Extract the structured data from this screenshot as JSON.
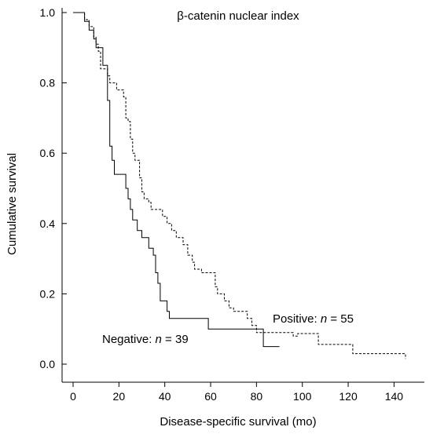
{
  "chart_data": {
    "type": "line",
    "title": "β-catenin nuclear index",
    "xlabel": "Disease-specific survival (mo)",
    "ylabel": "Cumulative survival",
    "xlim": [
      0,
      145
    ],
    "ylim": [
      0,
      1
    ],
    "xticks": [
      "0",
      "20",
      "40",
      "60",
      "80",
      "100",
      "120",
      "140"
    ],
    "yticks": [
      "0.0",
      "0.2",
      "0.4",
      "0.6",
      "0.8",
      "1.0"
    ],
    "grid": false,
    "series": [
      {
        "name": "Negative",
        "style": "solid",
        "points": [
          [
            0,
            1.0
          ],
          [
            4,
            1.0
          ],
          [
            5,
            0.975
          ],
          [
            7,
            0.95
          ],
          [
            9,
            0.925
          ],
          [
            10,
            0.9
          ],
          [
            12,
            0.9
          ],
          [
            13,
            0.85
          ],
          [
            15,
            0.85
          ],
          [
            15,
            0.75
          ],
          [
            16,
            0.62
          ],
          [
            17,
            0.58
          ],
          [
            18,
            0.54
          ],
          [
            23,
            0.54
          ],
          [
            23,
            0.5
          ],
          [
            24,
            0.47
          ],
          [
            25,
            0.44
          ],
          [
            26,
            0.41
          ],
          [
            28,
            0.38
          ],
          [
            30,
            0.36
          ],
          [
            33,
            0.36
          ],
          [
            33,
            0.33
          ],
          [
            35,
            0.31
          ],
          [
            36,
            0.28
          ],
          [
            36,
            0.26
          ],
          [
            37,
            0.23
          ],
          [
            38,
            0.21
          ],
          [
            38,
            0.18
          ],
          [
            40,
            0.18
          ],
          [
            41,
            0.15
          ],
          [
            42,
            0.13
          ],
          [
            59,
            0.13
          ],
          [
            59,
            0.1
          ],
          [
            83,
            0.1
          ],
          [
            83,
            0.05
          ],
          [
            90,
            0.05
          ]
        ]
      },
      {
        "name": "Positive",
        "style": "dashed",
        "points": [
          [
            0,
            1.0
          ],
          [
            4,
            1.0
          ],
          [
            5,
            0.98
          ],
          [
            7,
            0.96
          ],
          [
            9,
            0.93
          ],
          [
            10,
            0.91
          ],
          [
            11,
            0.89
          ],
          [
            12,
            0.84
          ],
          [
            14,
            0.84
          ],
          [
            15,
            0.82
          ],
          [
            16,
            0.8
          ],
          [
            19,
            0.78
          ],
          [
            22,
            0.76
          ],
          [
            23,
            0.7
          ],
          [
            24,
            0.69
          ],
          [
            25,
            0.64
          ],
          [
            26,
            0.6
          ],
          [
            27,
            0.58
          ],
          [
            29,
            0.53
          ],
          [
            30,
            0.49
          ],
          [
            31,
            0.47
          ],
          [
            33,
            0.46
          ],
          [
            34,
            0.44
          ],
          [
            38,
            0.44
          ],
          [
            39,
            0.42
          ],
          [
            41,
            0.4
          ],
          [
            43,
            0.38
          ],
          [
            45,
            0.36
          ],
          [
            48,
            0.34
          ],
          [
            50,
            0.31
          ],
          [
            52,
            0.29
          ],
          [
            53,
            0.27
          ],
          [
            56,
            0.26
          ],
          [
            61,
            0.26
          ],
          [
            62,
            0.22
          ],
          [
            63,
            0.2
          ],
          [
            66,
            0.18
          ],
          [
            68,
            0.16
          ],
          [
            70,
            0.15
          ],
          [
            75,
            0.15
          ],
          [
            76,
            0.13
          ],
          [
            78,
            0.11
          ],
          [
            80,
            0.09
          ],
          [
            96,
            0.09
          ],
          [
            96,
            0.08
          ],
          [
            98,
            0.087
          ],
          [
            107,
            0.087
          ],
          [
            107,
            0.056
          ],
          [
            122,
            0.056
          ],
          [
            122,
            0.03
          ],
          [
            145,
            0.03
          ],
          [
            145,
            0.015
          ]
        ]
      }
    ],
    "annotations": {
      "positive_label": "Positive: ",
      "positive_n": "n",
      "positive_eq": " = 55",
      "negative_label": "Negative: ",
      "negative_n": "n",
      "negative_eq": " = 39"
    }
  }
}
